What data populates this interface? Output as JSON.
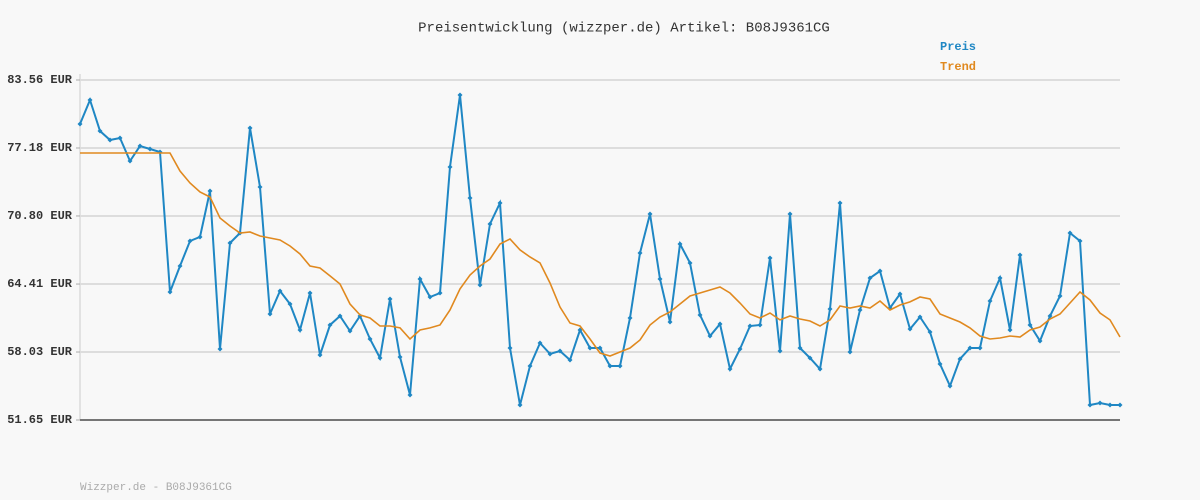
{
  "chart_data": {
    "type": "line",
    "title": "Preisentwicklung (wizzper.de) Artikel: B08J9361CG",
    "footer": "Wizzper.de - B08J9361CG",
    "categories": [
      null,
      null,
      null,
      null,
      null,
      null,
      null,
      null,
      null,
      null,
      null,
      null,
      null,
      null,
      null,
      null,
      null,
      null,
      null,
      null,
      null,
      null,
      null,
      null,
      null,
      null,
      null,
      null,
      null,
      null,
      null,
      null,
      null,
      null,
      null,
      null,
      null,
      null,
      null,
      null,
      null,
      null,
      null,
      null,
      null,
      null,
      null,
      null,
      null,
      null,
      null,
      null,
      null,
      null,
      null,
      null,
      null,
      null,
      null,
      null,
      null,
      null,
      null,
      null,
      null,
      null,
      null,
      null,
      null,
      null,
      null,
      null,
      null,
      null,
      null,
      null,
      null,
      null,
      null,
      null,
      null,
      null,
      null,
      null,
      null,
      null,
      null,
      null,
      null,
      null,
      null,
      null,
      null,
      null,
      null,
      null,
      null,
      null,
      null,
      null,
      null,
      null,
      null,
      null,
      null
    ],
    "series": [
      {
        "name": "Preis",
        "color": "#1f87c4",
        "values": [
          79.43,
          81.68,
          78.77,
          77.93,
          78.12,
          75.96,
          77.37,
          77.08,
          76.8,
          63.66,
          66.1,
          68.45,
          68.83,
          73.14,
          58.31,
          68.26,
          69.2,
          79.06,
          73.52,
          61.6,
          63.76,
          62.54,
          60.1,
          63.57,
          57.75,
          60.57,
          61.41,
          60.0,
          61.41,
          59.25,
          57.47,
          63.01,
          57.56,
          54.0,
          64.88,
          63.19,
          63.57,
          75.4,
          82.15,
          72.49,
          64.32,
          70.05,
          72.02,
          58.41,
          53.06,
          56.72,
          58.88,
          57.85,
          58.13,
          57.28,
          60.1,
          58.41,
          58.41,
          56.72,
          56.72,
          61.22,
          67.32,
          70.98,
          64.88,
          60.85,
          68.17,
          66.39,
          61.51,
          59.53,
          60.66,
          56.44,
          58.31,
          60.47,
          60.57,
          66.85,
          58.13,
          70.98,
          58.41,
          57.47,
          56.44,
          62.07,
          72.02,
          58.03,
          61.97,
          64.98,
          65.63,
          62.16,
          63.48,
          60.19,
          61.32,
          59.91,
          56.91,
          54.84,
          57.38,
          58.41,
          58.41,
          62.82,
          64.98,
          60.1,
          67.14,
          60.57,
          59.07,
          61.41,
          63.29,
          69.2,
          68.45,
          53.06,
          53.25,
          53.06,
          53.06
        ]
      },
      {
        "name": "Trend",
        "color": "#e0891f",
        "values": [
          76.71,
          76.71,
          76.71,
          76.71,
          76.71,
          76.71,
          76.71,
          76.71,
          76.71,
          76.71,
          75.02,
          73.89,
          73.05,
          72.58,
          70.61,
          69.86,
          69.2,
          69.29,
          68.92,
          68.73,
          68.54,
          67.98,
          67.23,
          66.1,
          65.92,
          65.17,
          64.41,
          62.54,
          61.51,
          61.22,
          60.47,
          60.47,
          60.29,
          59.25,
          60.1,
          60.29,
          60.57,
          61.97,
          63.95,
          65.26,
          66.1,
          66.76,
          68.17,
          68.64,
          67.61,
          66.95,
          66.39,
          64.51,
          62.26,
          60.75,
          60.47,
          59.25,
          57.94,
          57.66,
          58.03,
          58.41,
          59.16,
          60.57,
          61.32,
          61.79,
          62.54,
          63.29,
          63.57,
          63.85,
          64.13,
          63.57,
          62.63,
          61.6,
          61.22,
          61.69,
          61.04,
          61.41,
          61.13,
          60.94,
          60.47,
          61.04,
          62.35,
          62.16,
          62.35,
          62.16,
          62.82,
          61.97,
          62.44,
          62.73,
          63.19,
          63.01,
          61.6,
          61.22,
          60.85,
          60.29,
          59.53,
          59.25,
          59.35,
          59.53,
          59.44,
          60.1,
          60.38,
          61.13,
          61.6,
          62.63,
          63.66,
          62.91,
          61.69,
          61.04,
          59.44
        ]
      }
    ],
    "ylim": [
      51.65,
      83.56
    ],
    "yticks": [
      {
        "value": 51.65,
        "label": "51.65 EUR"
      },
      {
        "value": 58.03,
        "label": "58.03 EUR"
      },
      {
        "value": 64.41,
        "label": "64.41 EUR"
      },
      {
        "value": 70.8,
        "label": "70.80 EUR"
      },
      {
        "value": 77.18,
        "label": "77.18 EUR"
      },
      {
        "value": 83.56,
        "label": "83.56 EUR"
      }
    ],
    "grid": true,
    "legend": "top-right"
  }
}
